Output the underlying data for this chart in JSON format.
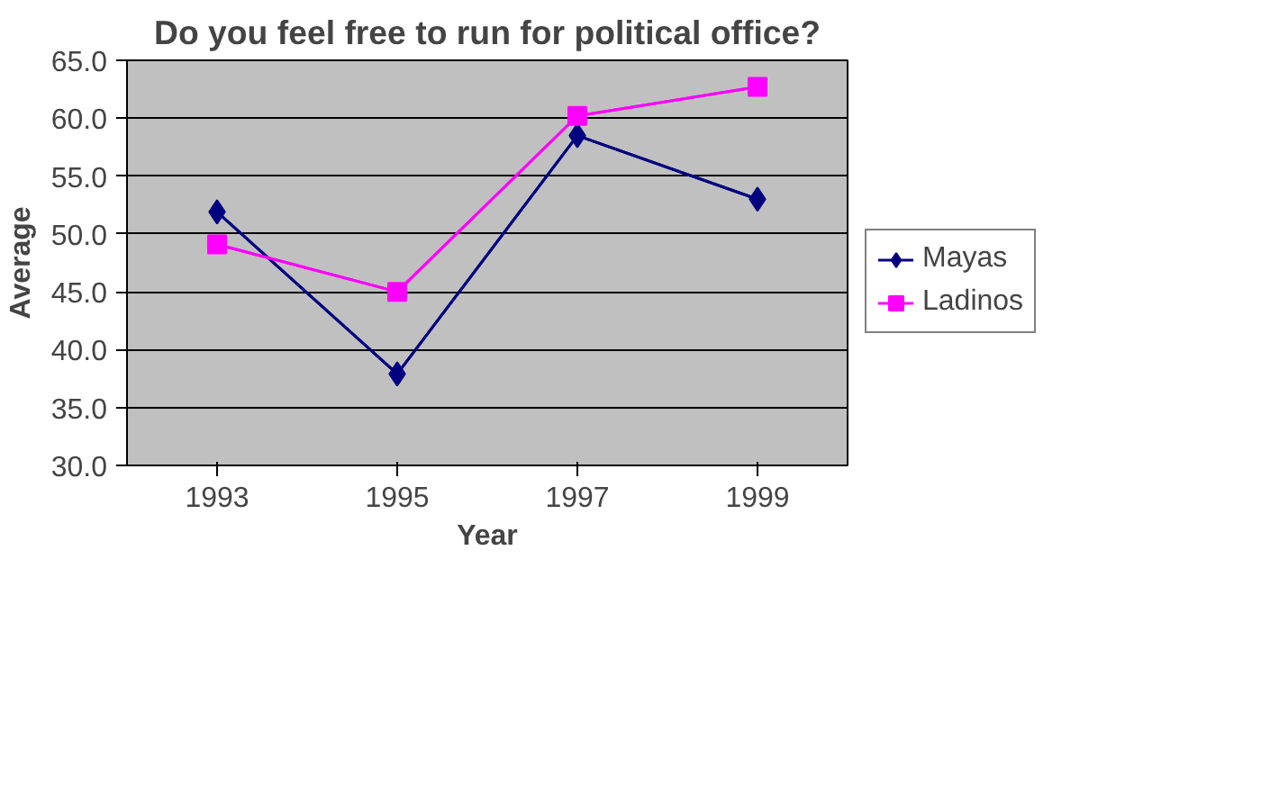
{
  "chart_data": {
    "type": "line",
    "title": "Do you feel free to run for political office?",
    "xlabel": "Year",
    "ylabel": "Average",
    "categories": [
      "1993",
      "1995",
      "1997",
      "1999"
    ],
    "series": [
      {
        "name": "Mayas",
        "color": "#000080",
        "marker": "diamond",
        "values": [
          51.9,
          37.9,
          58.5,
          53.0
        ]
      },
      {
        "name": "Ladinos",
        "color": "#ff00ff",
        "marker": "square",
        "values": [
          49.1,
          45.0,
          60.2,
          62.7
        ]
      }
    ],
    "ylim": [
      30,
      65
    ],
    "yticks": [
      {
        "value": 30,
        "label": "30.0"
      },
      {
        "value": 35,
        "label": "35.0"
      },
      {
        "value": 40,
        "label": "40.0"
      },
      {
        "value": 45,
        "label": "45.0"
      },
      {
        "value": 50,
        "label": "50.0"
      },
      {
        "value": 55,
        "label": "55.0"
      },
      {
        "value": 60,
        "label": "60.0"
      },
      {
        "value": 65,
        "label": "65.0"
      }
    ],
    "grid": "y",
    "legend": "right",
    "line_style": "solid"
  }
}
